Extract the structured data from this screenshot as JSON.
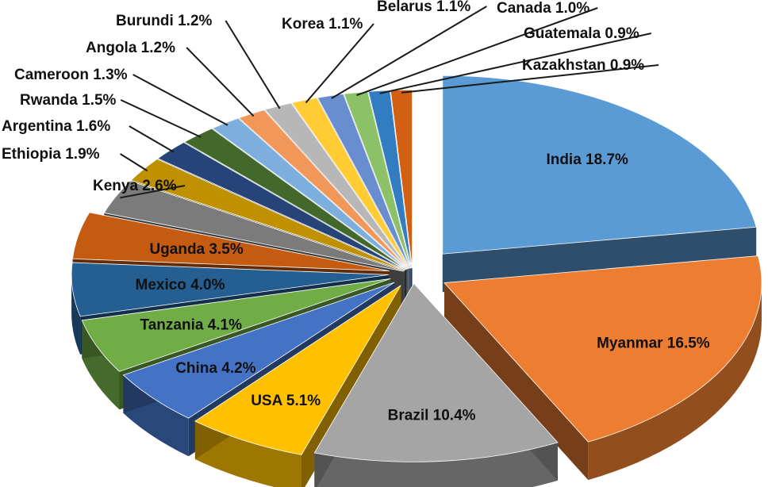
{
  "chart_data": {
    "type": "pie",
    "style": "3d-exploded",
    "slices": [
      {
        "name": "India",
        "value": 18.7,
        "label": "India 18.7%",
        "color": "#5B9BD5",
        "exploded": true
      },
      {
        "name": "Myanmar",
        "value": 16.5,
        "label": "Myanmar 16.5%",
        "color": "#ED7D31",
        "exploded": true
      },
      {
        "name": "Brazil",
        "value": 10.4,
        "label": "Brazil 10.4%",
        "color": "#A5A5A5",
        "exploded": true
      },
      {
        "name": "USA",
        "value": 5.1,
        "label": "USA 5.1%",
        "color": "#FFC000",
        "exploded": true
      },
      {
        "name": "China",
        "value": 4.2,
        "label": "China 4.2%",
        "color": "#4472C4",
        "exploded": true
      },
      {
        "name": "Tanzania",
        "value": 4.1,
        "label": "Tanzania 4.1%",
        "color": "#70AD47",
        "exploded": true
      },
      {
        "name": "Mexico",
        "value": 4.0,
        "label": "Mexico 4.0%",
        "color": "#255E91",
        "exploded": true
      },
      {
        "name": "Uganda",
        "value": 3.5,
        "label": "Uganda 3.5%",
        "color": "#C55A11",
        "exploded": true
      },
      {
        "name": "Kenya",
        "value": 2.6,
        "label": "Kenya 2.6%",
        "color": "#7B7B7B",
        "exploded": false
      },
      {
        "name": "Ethiopia",
        "value": 1.9,
        "label": "Ethiopia 1.9%",
        "color": "#BF9000",
        "exploded": false
      },
      {
        "name": "Argentina",
        "value": 1.6,
        "label": "Argentina 1.6%",
        "color": "#264478",
        "exploded": false
      },
      {
        "name": "Rwanda",
        "value": 1.5,
        "label": "Rwanda 1.5%",
        "color": "#43682B",
        "exploded": false
      },
      {
        "name": "Cameroon",
        "value": 1.3,
        "label": "Cameroon 1.3%",
        "color": "#7CAFDD",
        "exploded": false
      },
      {
        "name": "Angola",
        "value": 1.2,
        "label": "Angola 1.2%",
        "color": "#F1975A",
        "exploded": false
      },
      {
        "name": "Burundi",
        "value": 1.2,
        "label": "Burundi 1.2%",
        "color": "#B7B7B7",
        "exploded": false
      },
      {
        "name": "Korea",
        "value": 1.1,
        "label": "Korea 1.1%",
        "color": "#FFCD33",
        "exploded": false
      },
      {
        "name": "Belarus",
        "value": 1.1,
        "label": "Belarus 1.1%",
        "color": "#698ED0",
        "exploded": false
      },
      {
        "name": "Canada",
        "value": 1.0,
        "label": "Canada 1.0%",
        "color": "#8CC168",
        "exploded": false
      },
      {
        "name": "Guatemala",
        "value": 0.9,
        "label": "Guatemala 0.9%",
        "color": "#327DC2",
        "exploded": false
      },
      {
        "name": "Kazakhstan",
        "value": 0.9,
        "label": "Kazakhstan 0.9%",
        "color": "#D26012",
        "exploded": false
      }
    ]
  }
}
